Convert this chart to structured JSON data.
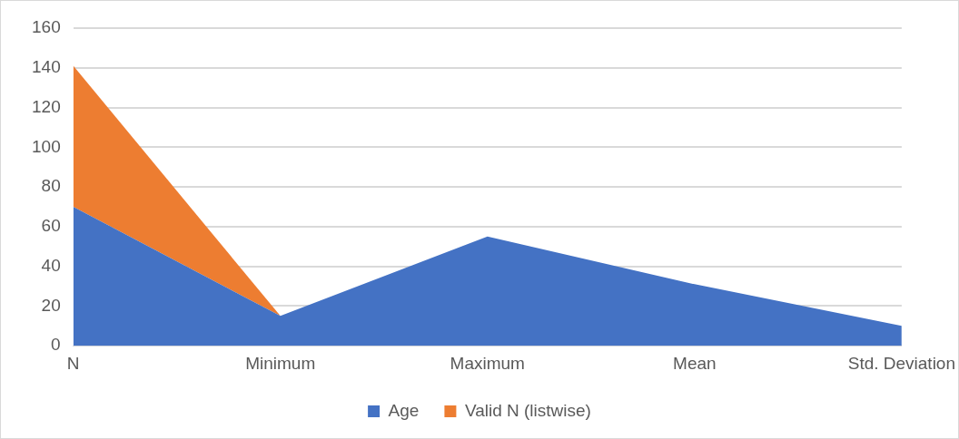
{
  "chart_data": {
    "type": "area",
    "stacked": true,
    "categories": [
      "N",
      "Minimum",
      "Maximum",
      "Mean",
      "Std. Deviation"
    ],
    "series": [
      {
        "name": "Age",
        "color": "#4472c4",
        "values": [
          70,
          15,
          55,
          31,
          10
        ]
      },
      {
        "name": "Valid N (listwise)",
        "color": "#ed7d31",
        "values": [
          71,
          0,
          null,
          null,
          null
        ]
      }
    ],
    "ylim": [
      0,
      160
    ],
    "yticks": [
      0,
      20,
      40,
      60,
      80,
      100,
      120,
      140,
      160
    ],
    "grid": "y",
    "legend": "bottom"
  }
}
